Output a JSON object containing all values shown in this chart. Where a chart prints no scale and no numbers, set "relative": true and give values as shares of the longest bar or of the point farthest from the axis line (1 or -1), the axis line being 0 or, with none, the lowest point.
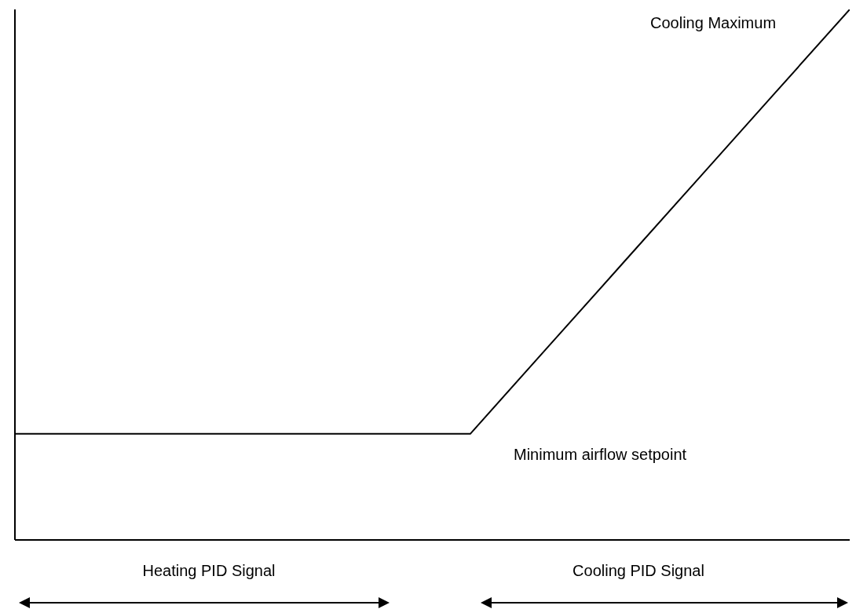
{
  "chart_data": {
    "type": "line",
    "relative": true,
    "categories": [
      null,
      null,
      null,
      null,
      null,
      null,
      null,
      null,
      null,
      null,
      null,
      null
    ],
    "series": [
      {
        "color": "#000000",
        "values": [
          0.2,
          0.2,
          0.2,
          0.2,
          0.2,
          0.2,
          0.2,
          0.36,
          0.52,
          0.68,
          0.84,
          1
        ]
      }
    ],
    "marker": "none",
    "line_style": "solid",
    "annotations": [
      "Cooling Maximum",
      "Minimum airflow setpoint",
      "Heating PID Signal",
      "Cooling PID Signal"
    ]
  }
}
